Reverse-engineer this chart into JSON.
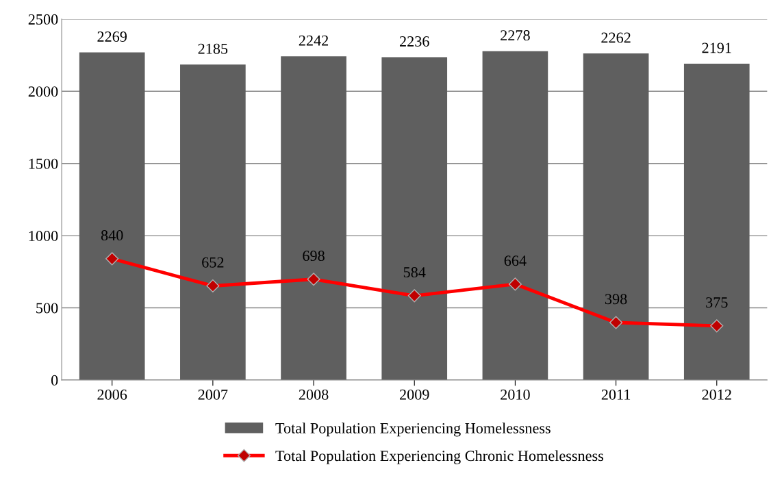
{
  "chart_data": {
    "type": "bar",
    "categories": [
      "2006",
      "2007",
      "2008",
      "2009",
      "2010",
      "2011",
      "2012"
    ],
    "series": [
      {
        "name": "Total Population Experiencing Homelessness",
        "color": "#5f5f5f",
        "values": [
          2269,
          2185,
          2242,
          2236,
          2278,
          2262,
          2191
        ]
      },
      {
        "name": "Total Population Experiencing Chronic Homelessness",
        "type": "line",
        "color": "#ff0000",
        "marker": "diamond",
        "values": [
          840,
          652,
          698,
          584,
          664,
          398,
          375
        ]
      }
    ],
    "ylim": [
      0,
      2500
    ],
    "yticks": [
      0,
      500,
      1000,
      1500,
      2000,
      2500
    ],
    "grid": "y",
    "legend": "bottom",
    "data_labels": true
  }
}
